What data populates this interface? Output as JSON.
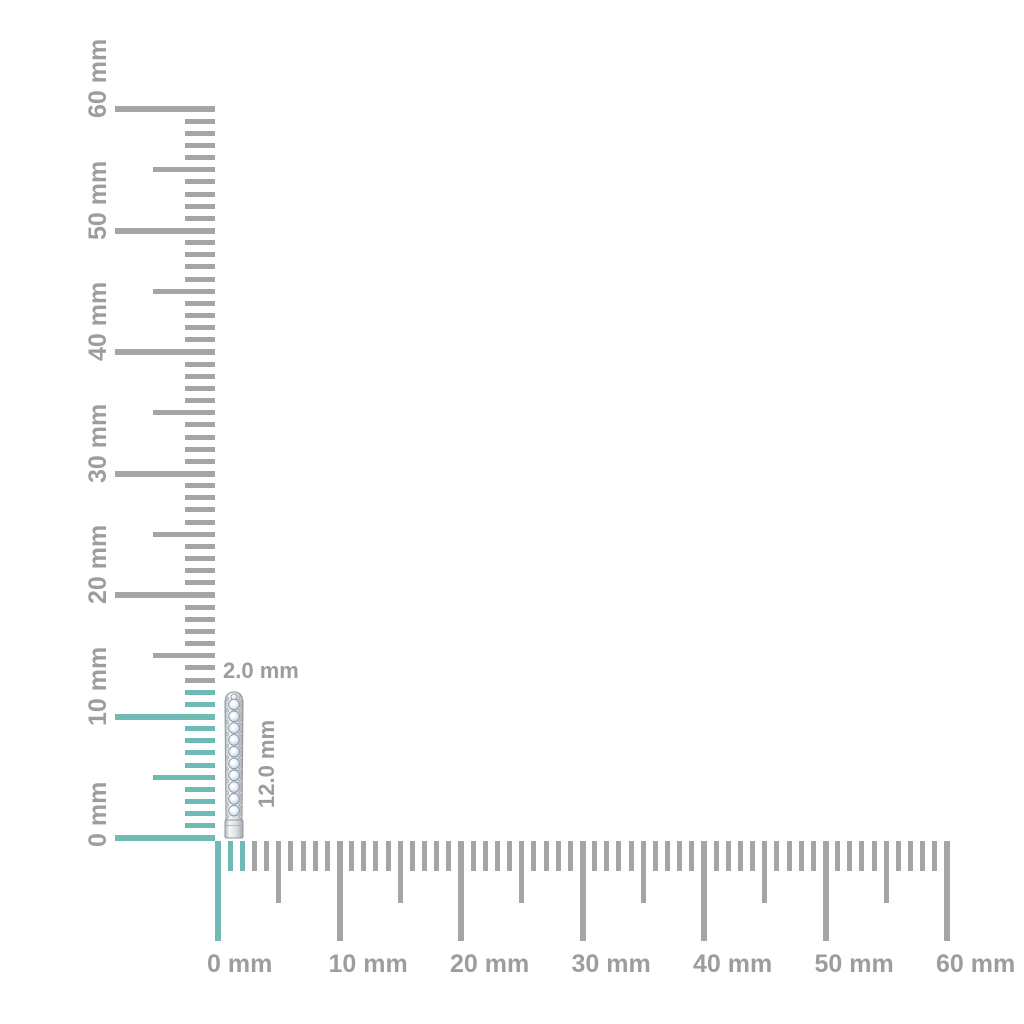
{
  "diagram": {
    "unit": "mm",
    "colors": {
      "tick_gray": "#a5a5a5",
      "tick_highlight": "#6fbab5",
      "ruler_label": "#9d9d9d",
      "dimension_label": "#9d9d9d"
    },
    "vertical_ruler": {
      "min_mm": 0,
      "max_mm": 60,
      "major_step_mm": 10,
      "medium_step_mm": 5,
      "minor_step_mm": 1,
      "labels": [
        "0 mm",
        "10 mm",
        "20 mm",
        "30 mm",
        "40 mm",
        "50 mm",
        "60 mm"
      ],
      "highlighted_range_mm": [
        0,
        12
      ]
    },
    "horizontal_ruler": {
      "min_mm": 0,
      "max_mm": 60,
      "major_step_mm": 10,
      "medium_step_mm": 5,
      "minor_step_mm": 1,
      "labels": [
        "0 mm",
        "10 mm",
        "20 mm",
        "30 mm",
        "40 mm",
        "50 mm",
        "60 mm"
      ],
      "highlighted_range_mm": [
        0,
        2
      ]
    },
    "object": {
      "name": "diamond bar earring",
      "width_label": "2.0 mm",
      "height_label": "12.0 mm",
      "width_mm": 2.0,
      "height_mm": 12.0,
      "gem_count": 10
    }
  }
}
